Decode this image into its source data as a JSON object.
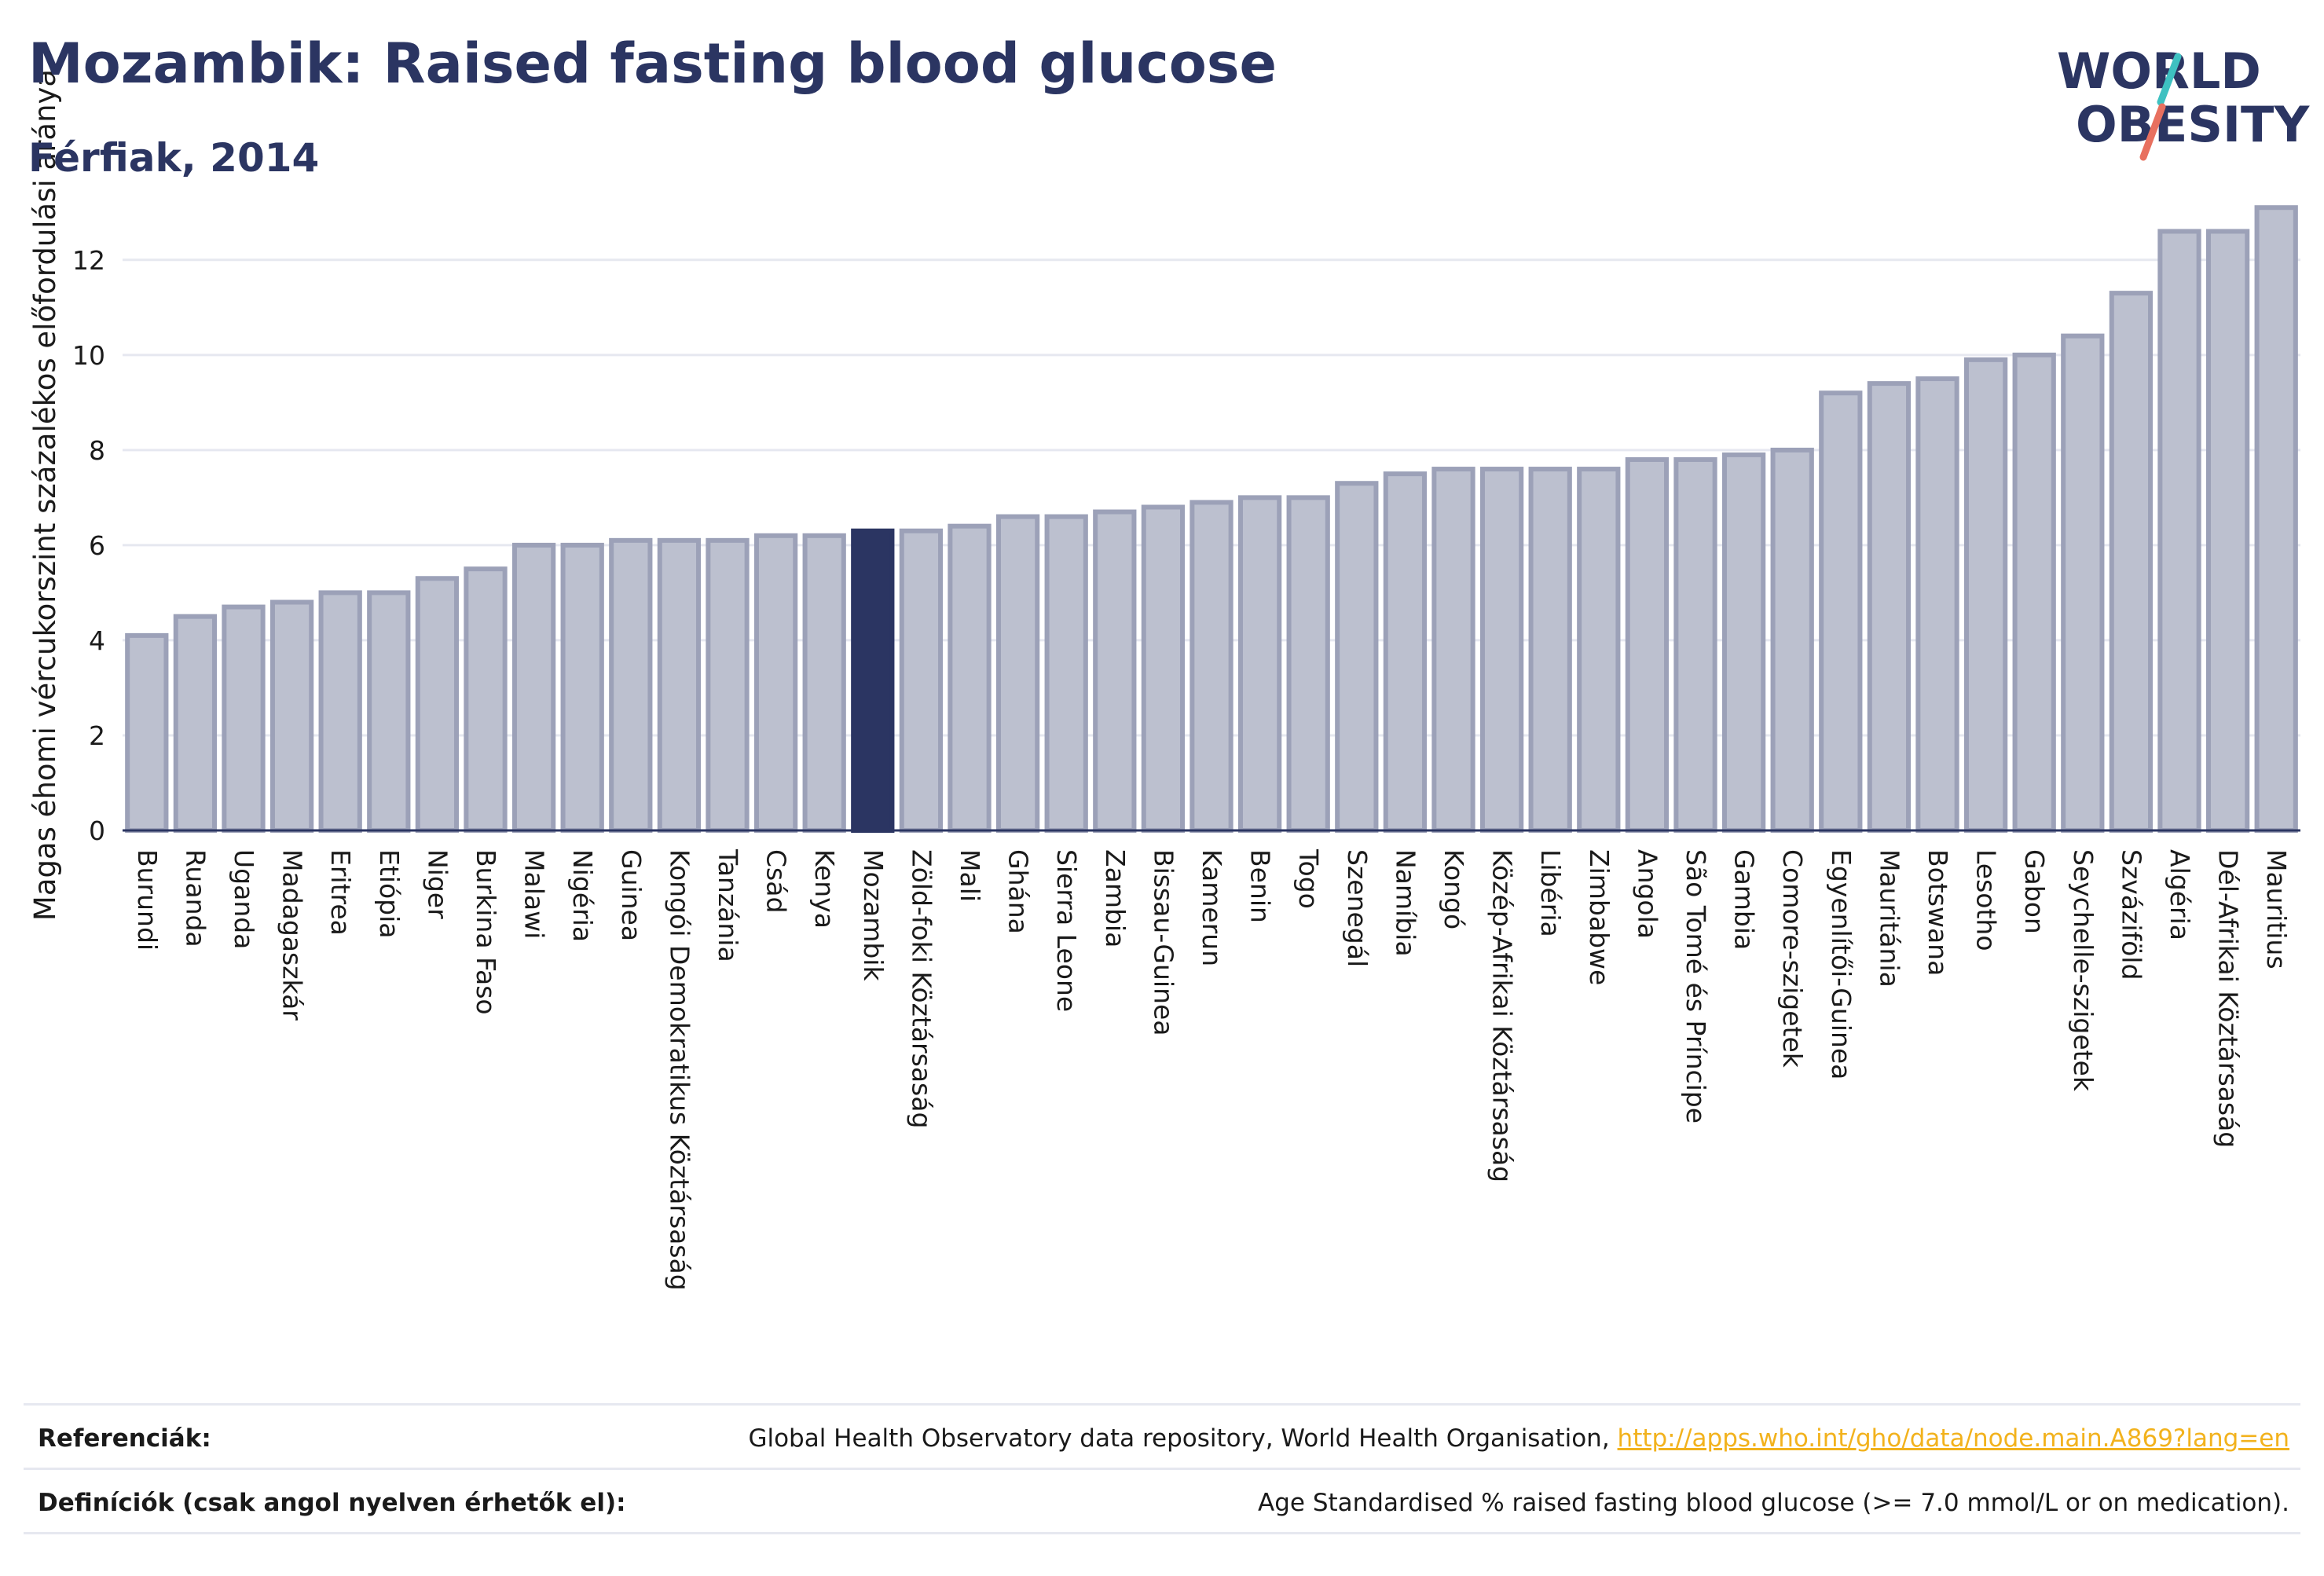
{
  "header": {
    "title": "Mozambik: Raised fasting blood glucose",
    "subtitle": "Férfiak, 2014"
  },
  "logo": {
    "line1": "WORLD",
    "line2": "OBESITY",
    "colors": {
      "text": "#2b3562",
      "slash_teal": "#3ec1c1",
      "slash_coral": "#e8705f"
    }
  },
  "chart_data": {
    "type": "bar",
    "title": "Mozambik: Raised fasting blood glucose",
    "subtitle": "Férfiak, 2014",
    "ylabel": "Magas éhomi vércukorszint százalékos előfordulási aránya",
    "xlabel": "",
    "ylim": [
      0,
      13.5
    ],
    "yticks": [
      0,
      2,
      4,
      6,
      8,
      10,
      12
    ],
    "grid": true,
    "highlight": "Mozambik",
    "colors": {
      "bar_fill": "#bcc0cf",
      "bar_stroke": "#9ca1b8",
      "highlight": "#2b3562",
      "grid": "#e6e8f0",
      "axis": "#2b3562"
    },
    "categories": [
      "Burundi",
      "Ruanda",
      "Uganda",
      "Madagaszkár",
      "Eritrea",
      "Etiópia",
      "Niger",
      "Burkina Faso",
      "Malawi",
      "Nigéria",
      "Guinea",
      "Kongói Demokratikus Köztársaság",
      "Tanzánia",
      "Csád",
      "Kenya",
      "Mozambik",
      "Zöld-foki Köztársaság",
      "Mali",
      "Ghána",
      "Sierra Leone",
      "Zambia",
      "Bissau-Guinea",
      "Kamerun",
      "Benin",
      "Togo",
      "Szenegál",
      "Namíbia",
      "Kongó",
      "Közép-Afrikai Köztársaság",
      "Libéria",
      "Zimbabwe",
      "Angola",
      "São Tomé és Príncipe",
      "Gambia",
      "Comore-szigetek",
      "Egyenlítői-Guinea",
      "Mauritánia",
      "Botswana",
      "Lesotho",
      "Gabon",
      "Seychelle-szigetek",
      "Szváziföld",
      "Algéria",
      "Dél-Afrikai Köztársaság",
      "Mauritius"
    ],
    "values": [
      4.1,
      4.5,
      4.7,
      4.8,
      5.0,
      5.0,
      5.3,
      5.5,
      6.0,
      6.0,
      6.1,
      6.1,
      6.1,
      6.2,
      6.2,
      6.3,
      6.3,
      6.4,
      6.6,
      6.6,
      6.7,
      6.8,
      6.9,
      7.0,
      7.0,
      7.3,
      7.5,
      7.6,
      7.6,
      7.6,
      7.6,
      7.8,
      7.8,
      7.9,
      8.0,
      9.2,
      9.4,
      9.5,
      9.9,
      10.0,
      10.4,
      11.3,
      12.6,
      12.6,
      13.1
    ]
  },
  "footer": {
    "references_label": "Referenciák:",
    "references_text": "Global Health Observatory data repository, World Health Organisation, ",
    "references_link": "http://apps.who.int/gho/data/node.main.A869?lang=en",
    "definitions_label": "Definíciók (csak angol nyelven érhetők el):",
    "definitions_text": "Age Standardised % raised fasting blood glucose (>= 7.0 mmol/L or on medication)."
  }
}
